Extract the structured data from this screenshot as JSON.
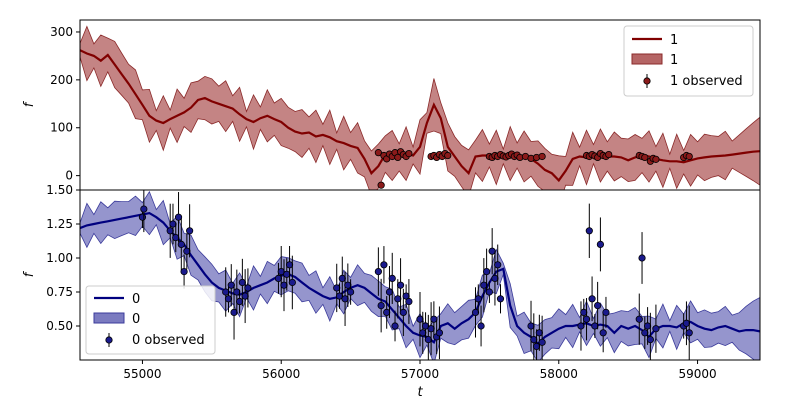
{
  "chart_data": [
    {
      "type": "line",
      "panel": "top",
      "ylabel": "f",
      "xlabel": "",
      "xlim": [
        54550,
        59450
      ],
      "ylim": [
        -30,
        325
      ],
      "yticks": [
        0,
        100,
        200,
        300
      ],
      "xticks": [],
      "legend_position": "top-right",
      "colors": {
        "line": "#800000",
        "band": "#b56565",
        "band_edge": "#8b2a2a",
        "points": "#8b1a1a"
      },
      "series": [
        {
          "name": "1",
          "kind": "model",
          "x": [
            54550,
            54600,
            54650,
            54700,
            54750,
            54800,
            54850,
            54900,
            54950,
            55000,
            55050,
            55100,
            55150,
            55200,
            55250,
            55300,
            55350,
            55400,
            55450,
            55500,
            55550,
            55600,
            55650,
            55700,
            55750,
            55800,
            55850,
            55900,
            55950,
            56000,
            56050,
            56100,
            56150,
            56200,
            56250,
            56300,
            56350,
            56400,
            56450,
            56500,
            56550,
            56600,
            56650,
            56700,
            56750,
            56800,
            56850,
            56900,
            56950,
            57000,
            57050,
            57100,
            57150,
            57200,
            57250,
            57300,
            57350,
            57400,
            57450,
            57500,
            57550,
            57600,
            57650,
            57700,
            57750,
            57800,
            57850,
            57900,
            57950,
            58000,
            58050,
            58100,
            58150,
            58200,
            58250,
            58300,
            58350,
            58400,
            58450,
            58500,
            58550,
            58600,
            58650,
            58700,
            58750,
            58800,
            58850,
            58900,
            58950,
            59000,
            59050,
            59100,
            59150,
            59200,
            59250,
            59300,
            59350,
            59400,
            59450
          ],
          "y": [
            262,
            255,
            250,
            240,
            252,
            232,
            212,
            192,
            170,
            148,
            125,
            115,
            110,
            118,
            125,
            132,
            142,
            158,
            162,
            155,
            150,
            145,
            140,
            128,
            118,
            112,
            120,
            125,
            118,
            112,
            100,
            92,
            88,
            90,
            82,
            85,
            80,
            72,
            68,
            62,
            58,
            35,
            5,
            20,
            45,
            42,
            38,
            46,
            42,
            60,
            110,
            148,
            120,
            60,
            40,
            20,
            5,
            40,
            42,
            42,
            38,
            40,
            46,
            42,
            40,
            35,
            25,
            12,
            5,
            -10,
            10,
            35,
            40,
            38,
            45,
            42,
            40,
            40,
            38,
            32,
            38,
            42,
            40,
            35,
            32,
            30,
            30,
            28,
            32,
            36,
            38,
            40,
            41,
            42,
            44,
            46,
            48,
            50,
            51
          ]
        },
        {
          "name": "1",
          "kind": "band"
        },
        {
          "name": "1 observed",
          "kind": "observed",
          "x": [
            56700,
            56720,
            56740,
            56760,
            56780,
            56800,
            56820,
            56840,
            56860,
            56880,
            56900,
            56920,
            57080,
            57100,
            57120,
            57140,
            57160,
            57180,
            57200,
            57500,
            57520,
            57540,
            57560,
            57580,
            57600,
            57620,
            57640,
            57660,
            57680,
            57700,
            57720,
            57760,
            57800,
            57840,
            57880,
            58200,
            58220,
            58240,
            58260,
            58280,
            58300,
            58320,
            58340,
            58360,
            58580,
            58600,
            58620,
            58660,
            58680,
            58700,
            58900,
            58920,
            58940
          ],
          "y": [
            48,
            -20,
            42,
            35,
            45,
            40,
            48,
            38,
            50,
            44,
            40,
            46,
            40,
            42,
            38,
            44,
            40,
            46,
            42,
            40,
            38,
            42,
            40,
            44,
            41,
            39,
            42,
            45,
            40,
            43,
            38,
            40,
            36,
            38,
            40,
            42,
            40,
            44,
            41,
            38,
            46,
            42,
            40,
            44,
            42,
            40,
            38,
            30,
            36,
            34,
            38,
            42,
            40
          ]
        }
      ]
    },
    {
      "type": "line",
      "panel": "bottom",
      "ylabel": "f",
      "xlabel": "t",
      "xlim": [
        54550,
        59450
      ],
      "ylim": [
        0.25,
        1.5
      ],
      "yticks": [
        0.5,
        0.75,
        1.0,
        1.25,
        1.5
      ],
      "ytick_labels": [
        "0.50",
        "0.75",
        "1.00",
        "1.25",
        "1.50"
      ],
      "xticks": [
        55000,
        56000,
        57000,
        58000,
        59000
      ],
      "legend_position": "bottom-left",
      "colors": {
        "line": "#00007f",
        "band": "#7b7bc0",
        "band_edge": "#3b3b9b",
        "points": "#1a1a8c"
      },
      "series": [
        {
          "name": "0",
          "kind": "model",
          "x": [
            54550,
            54600,
            54650,
            54700,
            54750,
            54800,
            54850,
            54900,
            54950,
            55000,
            55050,
            55100,
            55150,
            55200,
            55250,
            55300,
            55350,
            55400,
            55450,
            55500,
            55550,
            55600,
            55650,
            55700,
            55750,
            55800,
            55850,
            55900,
            55950,
            56000,
            56050,
            56100,
            56150,
            56200,
            56250,
            56300,
            56350,
            56400,
            56450,
            56500,
            56550,
            56600,
            56650,
            56700,
            56750,
            56800,
            56850,
            56900,
            56950,
            57000,
            57050,
            57100,
            57150,
            57200,
            57250,
            57300,
            57350,
            57400,
            57450,
            57500,
            57550,
            57600,
            57650,
            57700,
            57750,
            57800,
            57850,
            57900,
            57950,
            58000,
            58050,
            58100,
            58150,
            58200,
            58250,
            58300,
            58350,
            58400,
            58450,
            58500,
            58550,
            58600,
            58650,
            58700,
            58750,
            58800,
            58850,
            58900,
            58950,
            59000,
            59050,
            59100,
            59150,
            59200,
            59250,
            59300,
            59350,
            59400,
            59450
          ],
          "y": [
            1.22,
            1.24,
            1.25,
            1.26,
            1.27,
            1.28,
            1.29,
            1.3,
            1.31,
            1.32,
            1.33,
            1.3,
            1.26,
            1.2,
            1.15,
            1.1,
            1.02,
            0.95,
            0.88,
            0.82,
            0.78,
            0.76,
            0.74,
            0.73,
            0.75,
            0.78,
            0.8,
            0.82,
            0.85,
            0.87,
            0.88,
            0.86,
            0.82,
            0.78,
            0.75,
            0.72,
            0.7,
            0.71,
            0.75,
            0.78,
            0.8,
            0.78,
            0.74,
            0.7,
            0.68,
            0.62,
            0.56,
            0.5,
            0.45,
            0.43,
            0.42,
            0.38,
            0.5,
            0.52,
            0.48,
            0.52,
            0.55,
            0.6,
            0.72,
            0.82,
            0.9,
            0.92,
            0.65,
            0.5,
            0.45,
            0.42,
            0.37,
            0.42,
            0.45,
            0.48,
            0.5,
            0.5,
            0.51,
            0.52,
            0.5,
            0.51,
            0.5,
            0.45,
            0.5,
            0.48,
            0.5,
            0.47,
            0.42,
            0.48,
            0.5,
            0.5,
            0.49,
            0.52,
            0.53,
            0.5,
            0.48,
            0.47,
            0.49,
            0.5,
            0.48,
            0.46,
            0.47,
            0.47,
            0.46
          ]
        },
        {
          "name": "0",
          "kind": "band"
        },
        {
          "name": "0 observed",
          "kind": "observed",
          "x": [
            55000,
            55010,
            55200,
            55220,
            55240,
            55260,
            55280,
            55300,
            55320,
            55340,
            55600,
            55620,
            55640,
            55660,
            55680,
            55700,
            55720,
            55740,
            55760,
            55980,
            56000,
            56020,
            56040,
            56060,
            56080,
            56400,
            56420,
            56440,
            56460,
            56480,
            56500,
            56700,
            56720,
            56740,
            56760,
            56780,
            56800,
            56820,
            56840,
            56860,
            56880,
            56900,
            56920,
            57000,
            57020,
            57040,
            57060,
            57080,
            57100,
            57120,
            57140,
            57400,
            57420,
            57440,
            57460,
            57480,
            57500,
            57520,
            57540,
            57560,
            57580,
            57800,
            57820,
            57840,
            57860,
            57880,
            58160,
            58180,
            58200,
            58220,
            58240,
            58260,
            58280,
            58300,
            58320,
            58340,
            58580,
            58600,
            58620,
            58640,
            58660,
            58700,
            58900,
            58920,
            58940
          ],
          "y": [
            1.3,
            1.36,
            1.2,
            1.25,
            1.15,
            1.3,
            1.1,
            0.9,
            1.05,
            1.2,
            0.75,
            0.7,
            0.8,
            0.6,
            0.75,
            0.68,
            0.82,
            0.72,
            0.78,
            0.85,
            0.9,
            0.8,
            0.88,
            0.95,
            0.82,
            0.78,
            0.72,
            0.85,
            0.7,
            0.8,
            0.75,
            0.9,
            0.65,
            0.95,
            0.6,
            0.75,
            0.85,
            0.5,
            0.7,
            0.8,
            0.6,
            0.72,
            0.68,
            0.55,
            0.45,
            0.5,
            0.4,
            0.48,
            0.55,
            0.42,
            0.45,
            0.6,
            0.7,
            0.5,
            0.8,
            0.9,
            0.75,
            1.05,
            0.85,
            0.95,
            0.7,
            0.5,
            0.4,
            0.35,
            0.45,
            0.38,
            0.5,
            0.6,
            0.55,
            1.2,
            0.7,
            0.5,
            0.65,
            1.1,
            0.45,
            0.6,
            0.55,
            1.0,
            0.45,
            0.5,
            0.4,
            0.48,
            0.5,
            0.52,
            0.45
          ]
        }
      ]
    }
  ]
}
